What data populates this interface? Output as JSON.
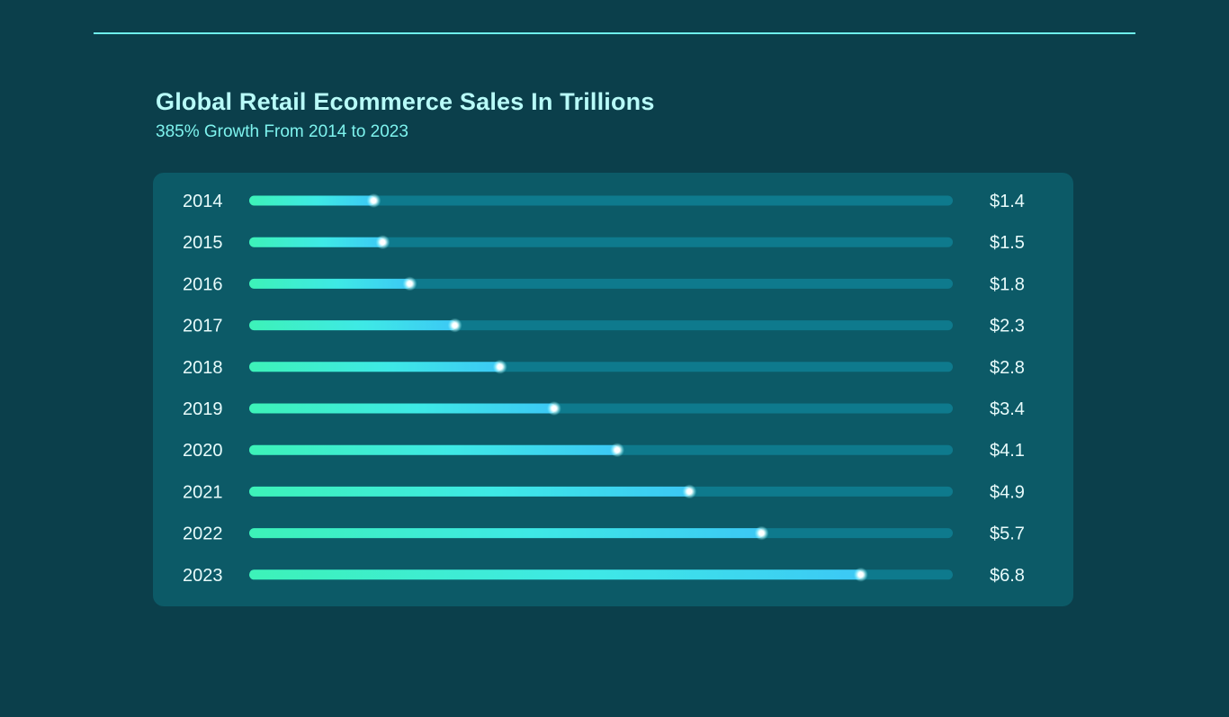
{
  "chart_data": {
    "type": "bar",
    "orientation": "horizontal",
    "title": "Global Retail Ecommerce Sales In Trillions",
    "subtitle": "385% Growth From 2014 to 2023",
    "categories": [
      "2014",
      "2015",
      "2016",
      "2017",
      "2018",
      "2019",
      "2020",
      "2021",
      "2022",
      "2023"
    ],
    "values": [
      1.4,
      1.5,
      1.8,
      2.3,
      2.8,
      3.4,
      4.1,
      4.9,
      5.7,
      6.8
    ],
    "value_labels": [
      "$1.4",
      "$1.5",
      "$1.8",
      "$2.3",
      "$2.8",
      "$3.4",
      "$4.1",
      "$4.9",
      "$5.7",
      "$6.8"
    ],
    "xlim": [
      0,
      7.8
    ],
    "grid": false,
    "legend": "none"
  },
  "colors": {
    "background": "#0b3f4b",
    "panel": "#0c5a67",
    "track": "#0e7a8d",
    "bar_start": "#3df2b8",
    "bar_end": "#3cc8f5",
    "text": "#e8fbfb",
    "title": "#b8fbf8",
    "accent": "#6ff0ec"
  }
}
